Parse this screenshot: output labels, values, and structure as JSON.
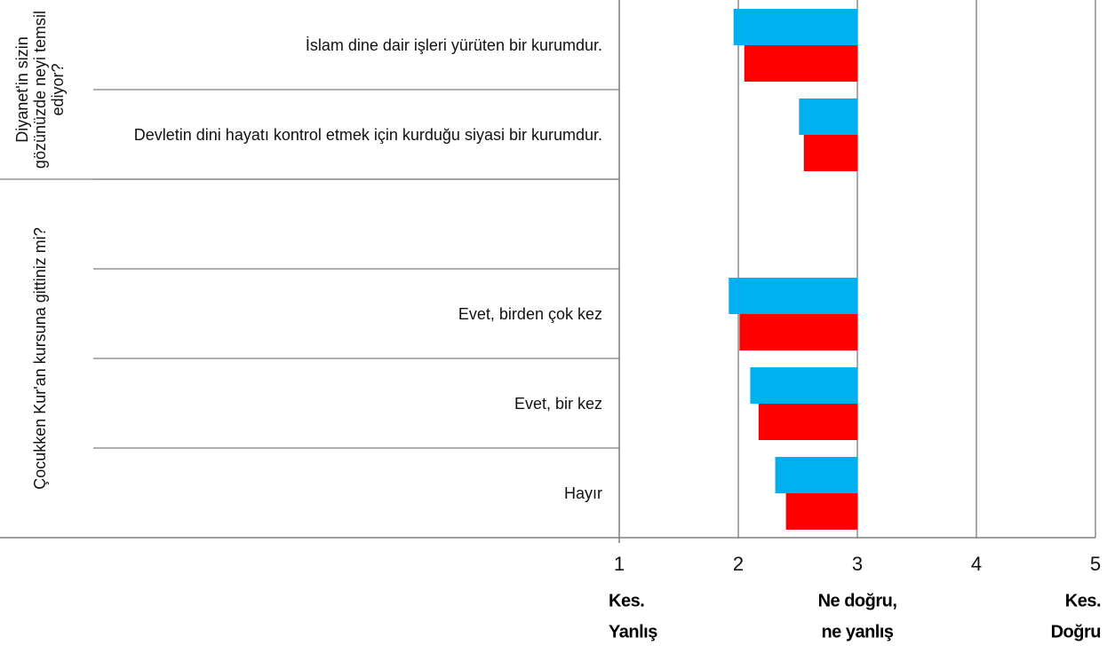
{
  "chart_data": {
    "type": "bar",
    "orientation": "horizontal",
    "base": 3,
    "categories": [
      "İslam dine dair işleri yürüten bir kurumdur.",
      "Devletin dini hayatı kontrol etmek için kurduğu siyasi bir kurumdur.",
      null,
      "Evet, birden çok kez",
      "Evet, bir kez",
      "Hayır"
    ],
    "groups": [
      {
        "label": "Diyanet'in sizin gözünüzde neyi temsil ediyor?",
        "size": 2
      },
      {
        "label": "Çocukken Kur'an kursuna gittiniz mi?",
        "size": 4
      }
    ],
    "series": [
      {
        "color": "#00b0f0",
        "values": [
          1.96,
          2.51,
          null,
          1.92,
          2.1,
          2.31
        ]
      },
      {
        "color": "#ff0000",
        "values": [
          2.05,
          2.55,
          null,
          2.01,
          2.17,
          2.4
        ]
      }
    ],
    "xlim": [
      1,
      5
    ],
    "xticks": [
      1,
      2,
      3,
      4,
      5
    ],
    "grid": true,
    "scale_labels": [
      {
        "value": 1,
        "lines": [
          "Kes.",
          "Yanlış"
        ]
      },
      {
        "value": 3,
        "lines": [
          "Ne doğru,",
          "ne yanlış"
        ]
      },
      {
        "value": 5,
        "lines": [
          "Kes.",
          "Doğru"
        ]
      }
    ]
  }
}
